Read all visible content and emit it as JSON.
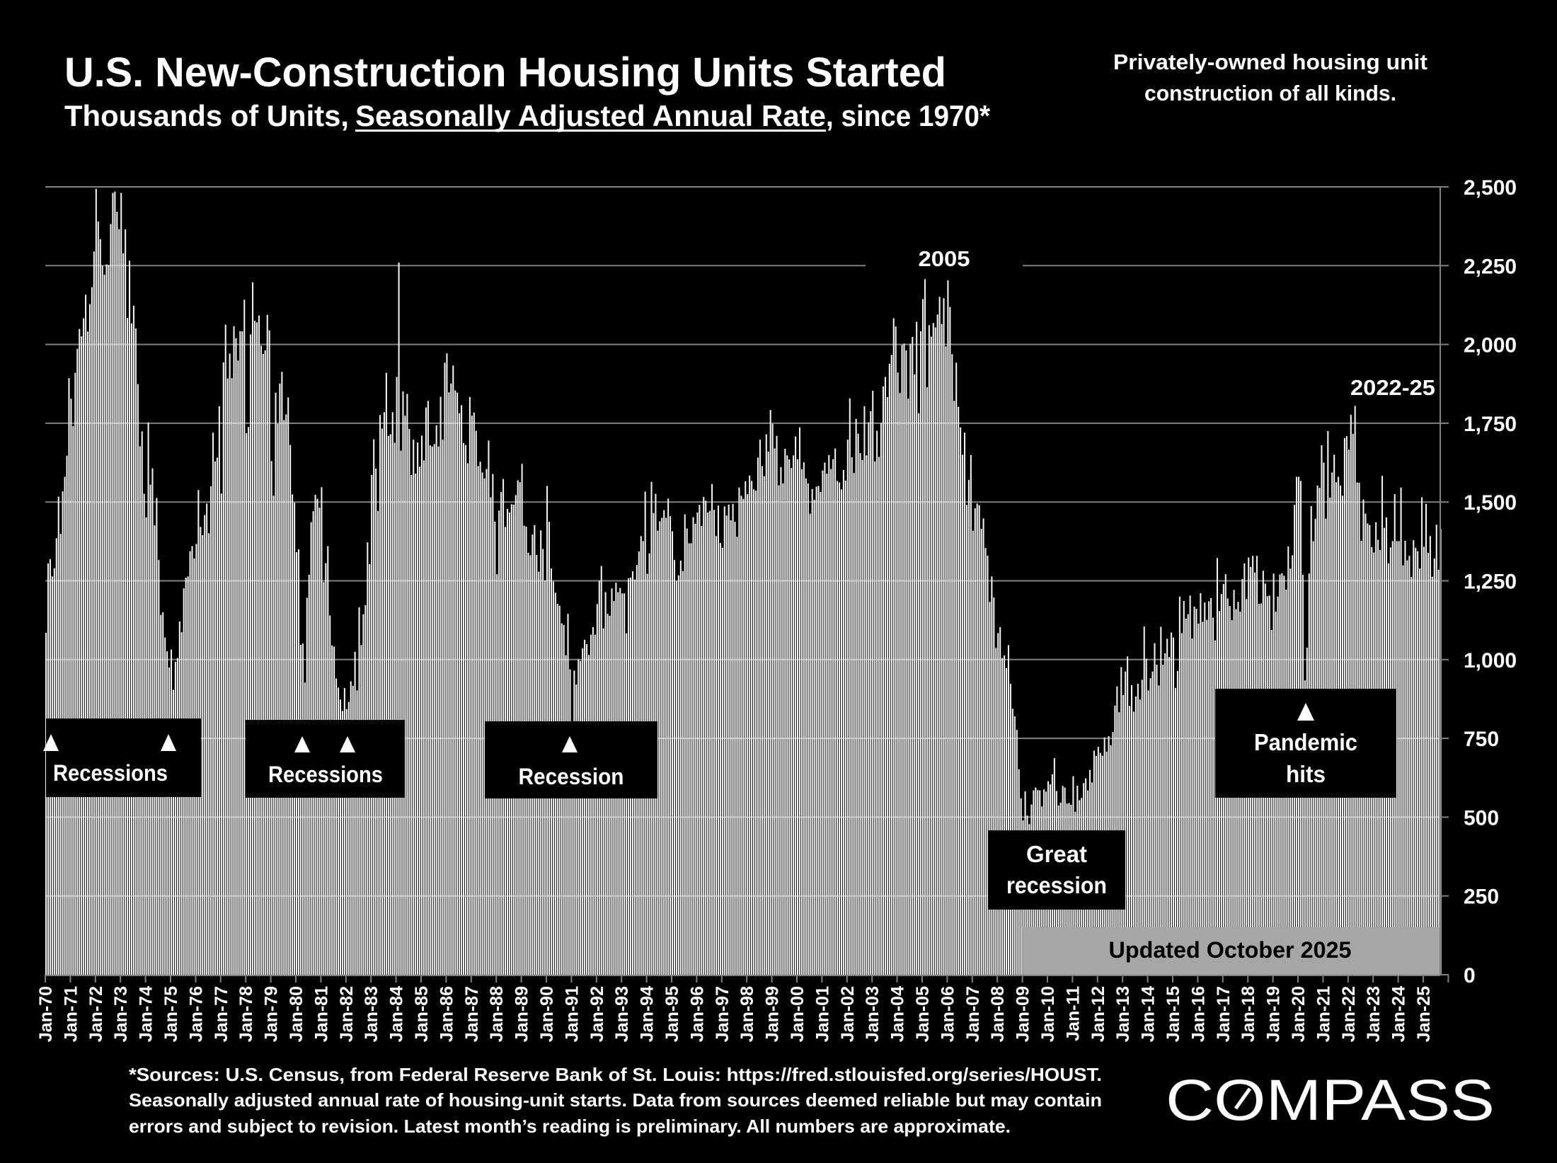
{
  "header": {
    "title": "U.S. New-Construction Housing Units Started",
    "subtitle_pre": "Thousands of Units, ",
    "subtitle_underlined": "Seasonally Adjusted Annual Rate",
    "subtitle_post": ", since 1970*",
    "note_line1": "Privately-owned housing unit",
    "note_line2": "construction of all kinds."
  },
  "footnote": {
    "line1": "*Sources: U.S. Census, from Federal Reserve Bank of St. Louis:  https://fred.stlouisfed.org/series/HOUST.",
    "line2": "Seasonally adjusted annual rate of housing-unit starts. Data from sources deemed reliable but may contain",
    "line3": "errors and subject to revision. Latest month’s reading is preliminary. All numbers are approximate."
  },
  "logo": {
    "text": "COMPASS"
  },
  "colors": {
    "background": "#000000",
    "bars": "#f2f2f2",
    "gridlines": "#808080",
    "updated_box": "#a6a6a6"
  },
  "annotations": {
    "recessions_1": "Recessions",
    "recessions_2": "Recessions",
    "recession_3": "Recession",
    "great_recession_line1": "Great",
    "great_recession_line2": "recession",
    "pandemic_line1": "Pandemic",
    "pandemic_line2": "hits",
    "peak_2005": "2005",
    "peak_2022_25": "2022-25",
    "updated": "Updated October 2025",
    "marker_icon": "triangle-up"
  },
  "chart_data": {
    "type": "bar",
    "title": "U.S. New-Construction Housing Units Started",
    "ylabel": "",
    "xlabel": "",
    "ylim": [
      0,
      2500
    ],
    "y_ticks": [
      "0",
      "250",
      "500",
      "750",
      "1,000",
      "1,250",
      "1,500",
      "1,750",
      "2,000",
      "2,250",
      "2,500"
    ],
    "y_axis_position": "right",
    "grid": true,
    "frequency": "monthly",
    "x_ticks": [
      "Jan-70",
      "Jan-71",
      "Jan-72",
      "Jan-73",
      "Jan-74",
      "Jan-75",
      "Jan-76",
      "Jan-77",
      "Jan-78",
      "Jan-79",
      "Jan-80",
      "Jan-81",
      "Jan-82",
      "Jan-83",
      "Jan-84",
      "Jan-85",
      "Jan-86",
      "Jan-87",
      "Jan-88",
      "Jan-89",
      "Jan-90",
      "Jan-91",
      "Jan-92",
      "Jan-93",
      "Jan-94",
      "Jan-95",
      "Jan-96",
      "Jan-97",
      "Jan-98",
      "Jan-99",
      "Jan-00",
      "Jan-01",
      "Jan-02",
      "Jan-03",
      "Jan-04",
      "Jan-05",
      "Jan-06",
      "Jan-07",
      "Jan-08",
      "Jan-09",
      "Jan-10",
      "Jan-11",
      "Jan-12",
      "Jan-13",
      "Jan-14",
      "Jan-15",
      "Jan-16",
      "Jan-17",
      "Jan-18",
      "Jan-19",
      "Jan-20",
      "Jan-21",
      "Jan-22",
      "Jan-23",
      "Jan-24",
      "Jan-25"
    ],
    "series": [
      {
        "year": 1970,
        "values": [
          1085,
          1305,
          1319,
          1264,
          1290,
          1385,
          1517,
          1399,
          1534,
          1580,
          1647,
          1893
        ]
      },
      {
        "year": 1971,
        "values": [
          1828,
          1741,
          1910,
          1986,
          2049,
          2026,
          2083,
          2158,
          2041,
          2128,
          2182,
          2295
        ]
      },
      {
        "year": 1972,
        "values": [
          2494,
          2390,
          2334,
          2249,
          2221,
          2254,
          2252,
          2382,
          2481,
          2485,
          2421,
          2366
        ]
      },
      {
        "year": 1973,
        "values": [
          2481,
          2289,
          2365,
          2084,
          2266,
          2067,
          2123,
          2051,
          1874,
          1677,
          1724,
          1526
        ]
      },
      {
        "year": 1974,
        "values": [
          1451,
          1752,
          1555,
          1607,
          1426,
          1513,
          1316,
          1142,
          1150,
          1070,
          1026,
          975
        ]
      },
      {
        "year": 1975,
        "values": [
          1032,
          904,
          993,
          1005,
          1121,
          1087,
          1226,
          1260,
          1264,
          1344,
          1360,
          1321
        ]
      },
      {
        "year": 1976,
        "values": [
          1367,
          1538,
          1421,
          1395,
          1459,
          1495,
          1401,
          1550,
          1720,
          1629,
          1641,
          1804
        ]
      },
      {
        "year": 1977,
        "values": [
          1527,
          1943,
          2063,
          1892,
          1971,
          1893,
          2058,
          2020,
          1949,
          2042,
          2042,
          2142
        ]
      },
      {
        "year": 1978,
        "values": [
          1718,
          1738,
          2032,
          2197,
          2075,
          2070,
          2092,
          1996,
          1970,
          1981,
          2094,
          2044
        ]
      },
      {
        "year": 1979,
        "values": [
          1630,
          1520,
          1847,
          1748,
          1876,
          1913,
          1760,
          1778,
          1832,
          1681,
          1524,
          1498
        ]
      },
      {
        "year": 1980,
        "values": [
          1341,
          1350,
          1047,
          1051,
          927,
          1196,
          1269,
          1436,
          1471,
          1523,
          1510,
          1482
        ]
      },
      {
        "year": 1981,
        "values": [
          1547,
          1246,
          1306,
          1360,
          1140,
          1045,
          1041,
          940,
          911,
          873,
          837,
          910
        ]
      },
      {
        "year": 1982,
        "values": [
          843,
          866,
          931,
          917,
          1025,
          902,
          1166,
          1046,
          1144,
          1173,
          1372,
          1303
        ]
      },
      {
        "year": 1983,
        "values": [
          1586,
          1699,
          1606,
          1472,
          1776,
          1733,
          1785,
          1910,
          1710,
          1715,
          1785,
          1688
        ]
      },
      {
        "year": 1984,
        "values": [
          1897,
          2260,
          1663,
          1851,
          1774,
          1843,
          1732,
          1586,
          1698,
          1590,
          1689,
          1612
        ]
      },
      {
        "year": 1985,
        "values": [
          1711,
          1632,
          1800,
          1821,
          1680,
          1676,
          1684,
          1743,
          1676,
          1834,
          1698,
          1942
        ]
      },
      {
        "year": 1986,
        "values": [
          1972,
          1848,
          1876,
          1933,
          1854,
          1847,
          1782,
          1807,
          1687,
          1681,
          1623,
          1833
        ]
      },
      {
        "year": 1987,
        "values": [
          1774,
          1784,
          1726,
          1614,
          1628,
          1594,
          1575,
          1605,
          1695,
          1515,
          1589,
          1438
        ]
      },
      {
        "year": 1988,
        "values": [
          1271,
          1473,
          1532,
          1573,
          1421,
          1478,
          1467,
          1493,
          1492,
          1522,
          1569,
          1563
        ]
      },
      {
        "year": 1989,
        "values": [
          1621,
          1425,
          1422,
          1339,
          1331,
          1397,
          1427,
          1332,
          1279,
          1410,
          1351,
          1251
        ]
      },
      {
        "year": 1990,
        "values": [
          1551,
          1437,
          1289,
          1248,
          1212,
          1177,
          1171,
          1115,
          1110,
          1014,
          1145,
          969
        ]
      },
      {
        "year": 1991,
        "values": [
          798,
          965,
          921,
          1001,
          996,
          1036,
          1063,
          1049,
          1015,
          1079,
          1103,
          1079
        ]
      },
      {
        "year": 1992,
        "values": [
          1176,
          1250,
          1297,
          1099,
          1214,
          1145,
          1139,
          1226,
          1186,
          1244,
          1214,
          1227
        ]
      },
      {
        "year": 1993,
        "values": [
          1210,
          1210,
          1083,
          1258,
          1260,
          1280,
          1254,
          1300,
          1343,
          1392,
          1376,
          1533
        ]
      },
      {
        "year": 1994,
        "values": [
          1272,
          1337,
          1564,
          1465,
          1526,
          1409,
          1439,
          1450,
          1474,
          1450,
          1511,
          1455
        ]
      },
      {
        "year": 1995,
        "values": [
          1407,
          1316,
          1249,
          1267,
          1314,
          1281,
          1461,
          1416,
          1369,
          1369,
          1452,
          1431
        ]
      },
      {
        "year": 1996,
        "values": [
          1467,
          1491,
          1424,
          1516,
          1504,
          1467,
          1472,
          1557,
          1475,
          1392,
          1489,
          1370
        ]
      },
      {
        "year": 1997,
        "values": [
          1355,
          1486,
          1457,
          1492,
          1442,
          1494,
          1437,
          1390,
          1546,
          1520,
          1510,
          1566
        ]
      },
      {
        "year": 1998,
        "values": [
          1525,
          1584,
          1567,
          1540,
          1536,
          1641,
          1698,
          1614,
          1582,
          1715,
          1660,
          1792
        ]
      },
      {
        "year": 1999,
        "values": [
          1748,
          1670,
          1710,
          1553,
          1611,
          1559,
          1669,
          1648,
          1635,
          1608,
          1648,
          1708
        ]
      },
      {
        "year": 2000,
        "values": [
          1636,
          1737,
          1604,
          1626,
          1575,
          1559,
          1463,
          1541,
          1507,
          1549,
          1551,
          1532
        ]
      },
      {
        "year": 2001,
        "values": [
          1600,
          1625,
          1590,
          1649,
          1605,
          1636,
          1670,
          1567,
          1562,
          1540,
          1602,
          1568
        ]
      },
      {
        "year": 2002,
        "values": [
          1698,
          1829,
          1642,
          1592,
          1764,
          1717,
          1655,
          1633,
          1804,
          1648,
          1753,
          1788
        ]
      },
      {
        "year": 2003,
        "values": [
          1853,
          1629,
          1726,
          1643,
          1751,
          1867,
          1897,
          1833,
          1939,
          1967,
          2083,
          2057
        ]
      },
      {
        "year": 2004,
        "values": [
          1911,
          1846,
          1998,
          2003,
          1981,
          1828,
          2002,
          2024,
          1905,
          2072,
          1782,
          2042
        ]
      },
      {
        "year": 2005,
        "values": [
          2144,
          2207,
          1864,
          2061,
          2025,
          2068,
          2054,
          2095,
          2151,
          2065,
          2147,
          1994
        ]
      },
      {
        "year": 2006,
        "values": [
          2203,
          2119,
          1969,
          1821,
          1942,
          1802,
          1737,
          1650,
          1720,
          1491,
          1570,
          1649
        ]
      },
      {
        "year": 2007,
        "values": [
          1409,
          1480,
          1495,
          1490,
          1415,
          1448,
          1354,
          1330,
          1183,
          1264,
          1197,
          1037
        ]
      },
      {
        "year": 2008,
        "values": [
          1084,
          1103,
          1005,
          1013,
          973,
          1046,
          923,
          844,
          820,
          777,
          652,
          560
        ]
      },
      {
        "year": 2009,
        "values": [
          490,
          582,
          505,
          478,
          540,
          585,
          594,
          586,
          585,
          534,
          588,
          581
        ]
      },
      {
        "year": 2010,
        "values": [
          614,
          604,
          636,
          687,
          583,
          537,
          546,
          599,
          594,
          543,
          545,
          539
        ]
      },
      {
        "year": 2011,
        "values": [
          630,
          517,
          600,
          554,
          561,
          608,
          623,
          585,
          650,
          610,
          711,
          694
        ]
      },
      {
        "year": 2012,
        "values": [
          723,
          704,
          695,
          753,
          708,
          757,
          728,
          770,
          854,
          915,
          833,
          976
        ]
      },
      {
        "year": 2013,
        "values": [
          888,
          962,
          1010,
          853,
          919,
          835,
          883,
          923,
          873,
          936,
          1105,
          1003
        ]
      },
      {
        "year": 2014,
        "values": [
          902,
          941,
          962,
          1052,
          984,
          918,
          1104,
          984,
          1020,
          1066,
          1008,
          1086
        ]
      },
      {
        "year": 2015,
        "values": [
          1070,
          910,
          964,
          1200,
          1084,
          1186,
          1130,
          1144,
          1203,
          1067,
          1168,
          1161
        ]
      },
      {
        "year": 2016,
        "values": [
          1114,
          1211,
          1120,
          1181,
          1126,
          1185,
          1195,
          1133,
          1061,
          1322,
          1154,
          1208
        ]
      },
      {
        "year": 2017,
        "values": [
          1240,
          1271,
          1194,
          1170,
          1125,
          1221,
          1160,
          1183,
          1152,
          1256,
          1305,
          1192
        ]
      },
      {
        "year": 2018,
        "values": [
          1324,
          1294,
          1329,
          1276,
          1329,
          1177,
          1178,
          1282,
          1241,
          1201,
          1203,
          1094
        ]
      },
      {
        "year": 2019,
        "values": [
          1273,
          1152,
          1200,
          1270,
          1274,
          1266,
          1222,
          1359,
          1289,
          1331,
          1491,
          1580
        ]
      },
      {
        "year": 2020,
        "values": [
          1580,
          1567,
          1269,
          934,
          1038,
          1273,
          1487,
          1376,
          1447,
          1552,
          1545,
          1680
        ]
      },
      {
        "year": 2021,
        "values": [
          1625,
          1447,
          1725,
          1514,
          1594,
          1650,
          1563,
          1580,
          1552,
          1520,
          1703,
          1709
        ]
      },
      {
        "year": 2022,
        "values": [
          1666,
          1777,
          1716,
          1805,
          1562,
          1561,
          1377,
          1508,
          1463,
          1432,
          1427,
          1357
        ]
      },
      {
        "year": 2023,
        "values": [
          1340,
          1436,
          1380,
          1348,
          1583,
          1418,
          1451,
          1305,
          1356,
          1376,
          1525,
          1376
        ]
      },
      {
        "year": 2024,
        "values": [
          1376,
          1546,
          1299,
          1377,
          1315,
          1329,
          1262,
          1379,
          1355,
          1344,
          1289,
          1515
        ]
      },
      {
        "year": 2025,
        "values": [
          1358,
          1494,
          1339,
          1392,
          1263,
          1321,
          1428,
          1285,
          1415
        ]
      }
    ]
  }
}
